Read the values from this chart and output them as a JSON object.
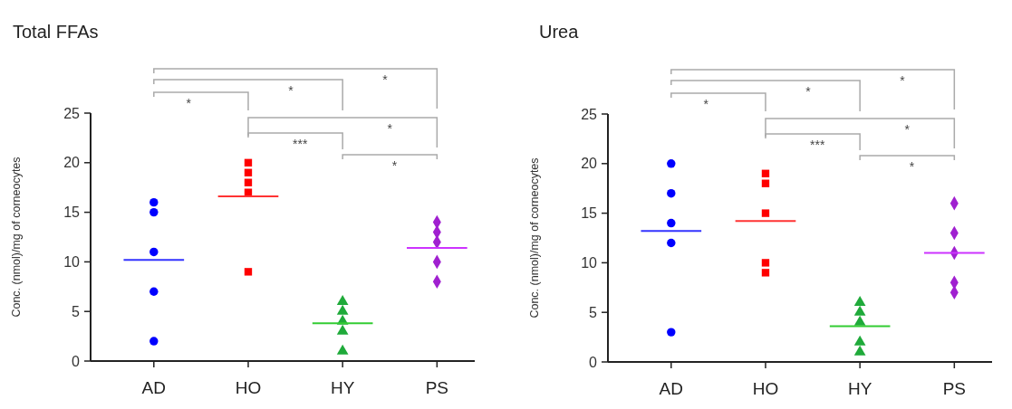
{
  "chart_data": [
    {
      "type": "scatter",
      "title": "Total FFAs",
      "ylabel": "Conc. (nmol)/mg of corneocytes",
      "categories": [
        "AD",
        "HO",
        "HY",
        "PS"
      ],
      "ylim": [
        0,
        25
      ],
      "yticks": [
        0,
        5,
        10,
        15,
        20,
        25
      ],
      "annotations": [
        "*",
        "*",
        "*",
        "*",
        "***",
        "*"
      ],
      "series": [
        {
          "marker": "circle",
          "color": "#0000ff",
          "x": [
            "AD",
            "AD",
            "AD",
            "AD",
            "AD"
          ],
          "values": [
            16,
            15,
            11,
            7,
            2
          ]
        },
        {
          "marker": "square",
          "color": "#ff0000",
          "x": [
            "HO",
            "HO",
            "HO",
            "HO",
            "HO"
          ],
          "values": [
            20,
            19,
            18,
            17,
            9
          ]
        },
        {
          "marker": "triangle",
          "color": "#1faa3a",
          "x": [
            "HY",
            "HY",
            "HY",
            "HY",
            "HY"
          ],
          "values": [
            6,
            5,
            4,
            3,
            1
          ]
        },
        {
          "marker": "diamond",
          "color": "#a020d0",
          "x": [
            "PS",
            "PS",
            "PS",
            "PS",
            "PS"
          ],
          "values": [
            14,
            13,
            12,
            10,
            8
          ]
        }
      ],
      "ref_lines": [
        {
          "axis": "y",
          "value": 10.2,
          "color": "#3333ff"
        },
        {
          "axis": "y",
          "value": 16.6,
          "color": "#ff3333"
        },
        {
          "axis": "y",
          "value": 3.8,
          "color": "#33cc33"
        },
        {
          "axis": "y",
          "value": 11.4,
          "color": "#cc33ff"
        }
      ]
    },
    {
      "type": "scatter",
      "title": "Urea",
      "ylabel": "Conc. (nmol)/mg of corneocytes",
      "categories": [
        "AD",
        "HO",
        "HY",
        "PS"
      ],
      "ylim": [
        0,
        25
      ],
      "yticks": [
        0,
        5,
        10,
        15,
        20,
        25
      ],
      "annotations": [
        "*",
        "*",
        "*",
        "*",
        "***",
        "*"
      ],
      "series": [
        {
          "marker": "circle",
          "color": "#0000ff",
          "x": [
            "AD",
            "AD",
            "AD",
            "AD",
            "AD"
          ],
          "values": [
            20,
            17,
            14,
            12,
            3
          ]
        },
        {
          "marker": "square",
          "color": "#ff0000",
          "x": [
            "HO",
            "HO",
            "HO",
            "HO",
            "HO"
          ],
          "values": [
            19,
            18,
            15,
            10,
            9
          ]
        },
        {
          "marker": "triangle",
          "color": "#1faa3a",
          "x": [
            "HY",
            "HY",
            "HY",
            "HY",
            "HY"
          ],
          "values": [
            6,
            5,
            4,
            2,
            1
          ]
        },
        {
          "marker": "diamond",
          "color": "#a020d0",
          "x": [
            "PS",
            "PS",
            "PS",
            "PS",
            "PS"
          ],
          "values": [
            16,
            13,
            11,
            8,
            7
          ]
        }
      ],
      "ref_lines": [
        {
          "axis": "y",
          "value": 13.2,
          "color": "#3333ff"
        },
        {
          "axis": "y",
          "value": 14.2,
          "color": "#ff3333"
        },
        {
          "axis": "y",
          "value": 3.6,
          "color": "#33cc33"
        },
        {
          "axis": "y",
          "value": 11,
          "color": "#cc33ff"
        }
      ]
    }
  ]
}
